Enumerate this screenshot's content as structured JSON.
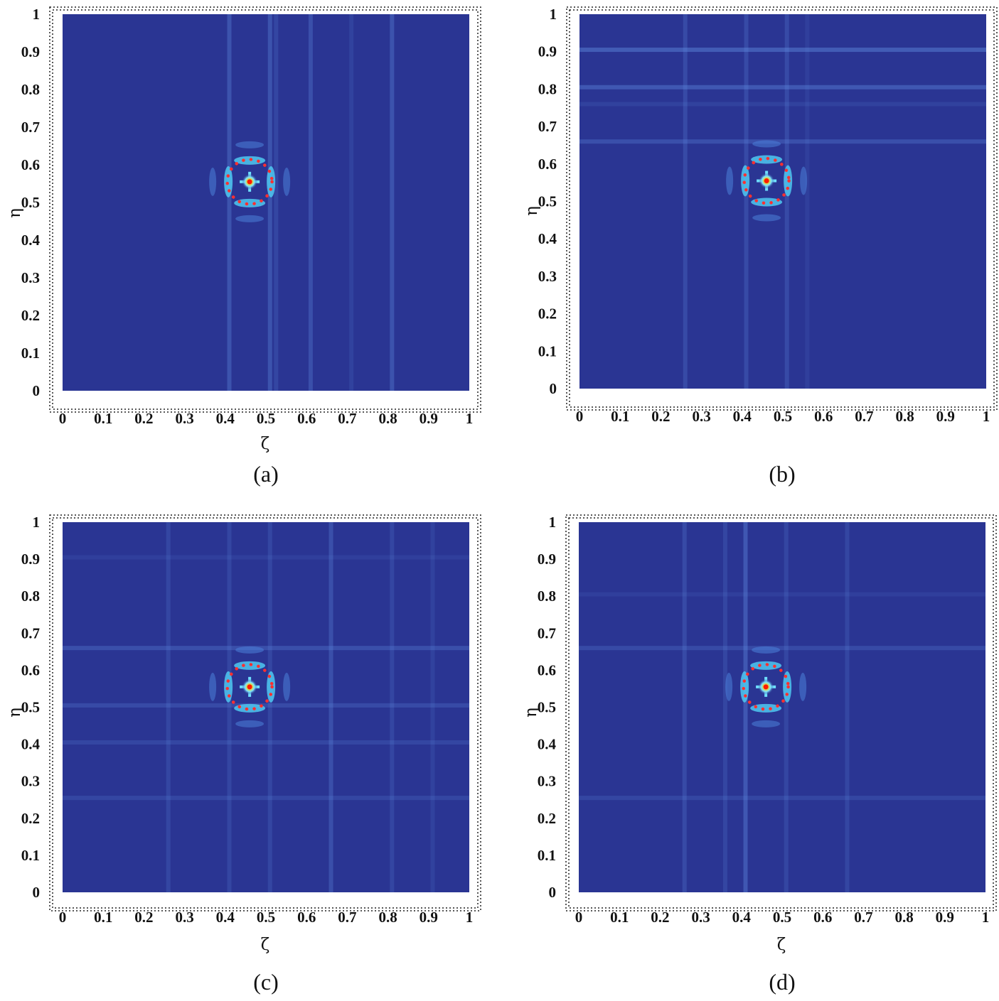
{
  "figure": {
    "panels": [
      {
        "id": "a",
        "caption": "(a)"
      },
      {
        "id": "b",
        "caption": "(b)"
      },
      {
        "id": "c",
        "caption": "(c)"
      },
      {
        "id": "d",
        "caption": "(d)"
      }
    ]
  },
  "chart_data": [
    {
      "type": "heatmap",
      "panel": "a",
      "caption": "(a)",
      "title": "",
      "xlabel": "ζ",
      "ylabel": "η",
      "xlim": [
        0,
        1
      ],
      "ylim": [
        0,
        1
      ],
      "xticks": [
        "0",
        "0.1",
        "0.2",
        "0.3",
        "0.4",
        "0.5",
        "0.6",
        "0.7",
        "0.8",
        "0.9",
        "1"
      ],
      "yticks": [
        "0",
        "0.1",
        "0.2",
        "0.3",
        "0.4",
        "0.5",
        "0.6",
        "0.7",
        "0.8",
        "0.9",
        "1"
      ],
      "grid": false,
      "colormap": "jet",
      "background_color": "#2a3593",
      "peak": {
        "x": 0.46,
        "y": 0.555
      },
      "estimate_circle": {
        "cx": 0.46,
        "cy": 0.555,
        "r": 0.055,
        "color": "#ff3030",
        "style": "dotted"
      },
      "streaks_vertical": [
        {
          "x": 0.41,
          "strength": 0.35
        },
        {
          "x": 0.51,
          "strength": 0.35
        },
        {
          "x": 0.525,
          "strength": 0.2
        },
        {
          "x": 0.61,
          "strength": 0.3
        },
        {
          "x": 0.71,
          "strength": 0.15
        },
        {
          "x": 0.81,
          "strength": 0.35
        }
      ],
      "streaks_horizontal": []
    },
    {
      "type": "heatmap",
      "panel": "b",
      "caption": "(b)",
      "title": "",
      "xlabel": "",
      "ylabel": "η",
      "xlim": [
        0,
        1
      ],
      "ylim": [
        0,
        1
      ],
      "xticks": [
        "0",
        "0.1",
        "0.2",
        "0.3",
        "0.4",
        "0.5",
        "0.6",
        "0.7",
        "0.8",
        "0.9",
        "1"
      ],
      "yticks": [
        "0",
        "0.1",
        "0.2",
        "0.3",
        "0.4",
        "0.5",
        "0.6",
        "0.7",
        "0.8",
        "0.9",
        "1"
      ],
      "grid": false,
      "colormap": "jet",
      "background_color": "#2a3593",
      "peak": {
        "x": 0.46,
        "y": 0.555
      },
      "estimate_circle": {
        "cx": 0.46,
        "cy": 0.555,
        "r": 0.055,
        "color": "#ff3030",
        "style": "dotted"
      },
      "streaks_vertical": [
        {
          "x": 0.26,
          "strength": 0.25
        },
        {
          "x": 0.41,
          "strength": 0.25
        },
        {
          "x": 0.51,
          "strength": 0.25
        },
        {
          "x": 0.56,
          "strength": 0.12
        }
      ],
      "streaks_horizontal": [
        {
          "y": 0.905,
          "strength": 0.45
        },
        {
          "y": 0.805,
          "strength": 0.4
        },
        {
          "y": 0.76,
          "strength": 0.15
        },
        {
          "y": 0.66,
          "strength": 0.3
        }
      ]
    },
    {
      "type": "heatmap",
      "panel": "c",
      "caption": "(c)",
      "title": "",
      "xlabel": "ζ",
      "ylabel": "η",
      "xlim": [
        0,
        1
      ],
      "ylim": [
        0,
        1
      ],
      "xticks": [
        "0",
        "0.1",
        "0.2",
        "0.3",
        "0.4",
        "0.5",
        "0.6",
        "0.7",
        "0.8",
        "0.9",
        "1"
      ],
      "yticks": [
        "0",
        "0.1",
        "0.2",
        "0.3",
        "0.4",
        "0.5",
        "0.6",
        "0.7",
        "0.8",
        "0.9",
        "1"
      ],
      "grid": false,
      "colormap": "jet",
      "background_color": "#2a3593",
      "peak": {
        "x": 0.46,
        "y": 0.555
      },
      "estimate_circle": {
        "cx": 0.46,
        "cy": 0.555,
        "r": 0.055,
        "color": "#ff3030",
        "style": "dotted"
      },
      "streaks_vertical": [
        {
          "x": 0.26,
          "strength": 0.2
        },
        {
          "x": 0.41,
          "strength": 0.2
        },
        {
          "x": 0.51,
          "strength": 0.2
        },
        {
          "x": 0.66,
          "strength": 0.3
        },
        {
          "x": 0.81,
          "strength": 0.2
        },
        {
          "x": 0.91,
          "strength": 0.15
        }
      ],
      "streaks_horizontal": [
        {
          "y": 0.905,
          "strength": 0.12
        },
        {
          "y": 0.66,
          "strength": 0.3
        },
        {
          "y": 0.505,
          "strength": 0.25
        },
        {
          "y": 0.405,
          "strength": 0.2
        },
        {
          "y": 0.255,
          "strength": 0.2
        }
      ]
    },
    {
      "type": "heatmap",
      "panel": "d",
      "caption": "(d)",
      "title": "",
      "xlabel": "ζ",
      "ylabel": "η",
      "xlim": [
        0,
        1
      ],
      "ylim": [
        0,
        1
      ],
      "xticks": [
        "0",
        "0.1",
        "0.2",
        "0.3",
        "0.4",
        "0.5",
        "0.6",
        "0.7",
        "0.8",
        "0.9",
        "1"
      ],
      "yticks": [
        "0",
        "0.1",
        "0.2",
        "0.3",
        "0.4",
        "0.5",
        "0.6",
        "0.7",
        "0.8",
        "0.9",
        "1"
      ],
      "grid": false,
      "colormap": "jet",
      "background_color": "#2a3593",
      "peak": {
        "x": 0.46,
        "y": 0.555
      },
      "estimate_circle": {
        "cx": 0.46,
        "cy": 0.555,
        "r": 0.055,
        "color": "#ff3030",
        "style": "dotted"
      },
      "streaks_vertical": [
        {
          "x": 0.26,
          "strength": 0.25
        },
        {
          "x": 0.36,
          "strength": 0.2
        },
        {
          "x": 0.41,
          "strength": 0.4
        },
        {
          "x": 0.51,
          "strength": 0.2
        },
        {
          "x": 0.66,
          "strength": 0.2
        }
      ],
      "streaks_horizontal": [
        {
          "y": 0.66,
          "strength": 0.25
        },
        {
          "y": 0.255,
          "strength": 0.2
        },
        {
          "y": 0.805,
          "strength": 0.12
        }
      ]
    }
  ]
}
